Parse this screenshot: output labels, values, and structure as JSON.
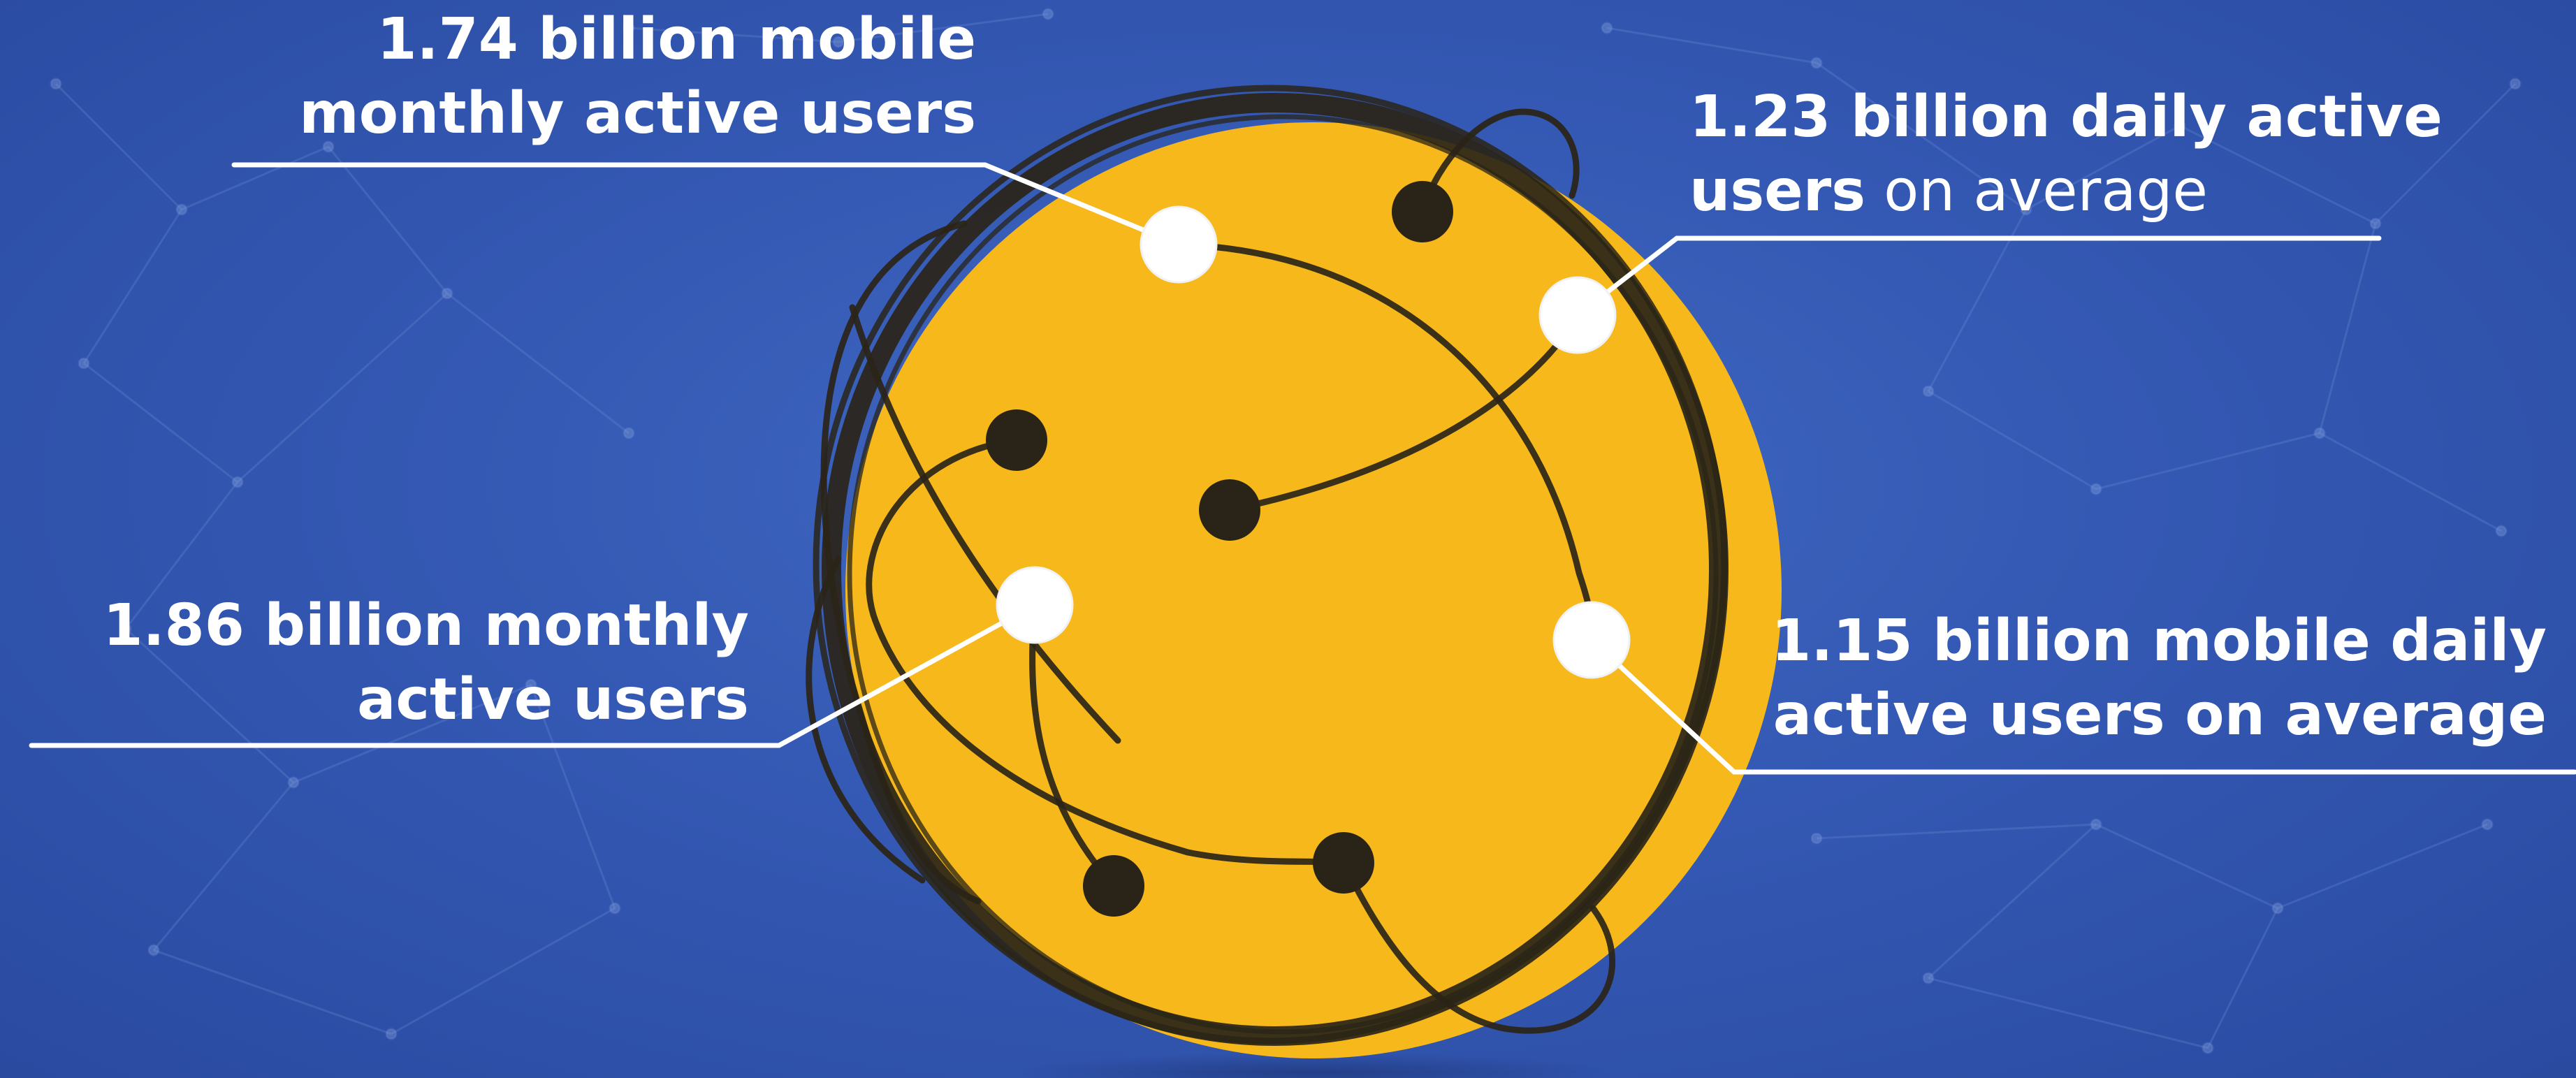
{
  "colors": {
    "background": "#3459b4",
    "globe_fill": "#f6b81a",
    "globe_stroke": "#2a2418",
    "callout_text": "#ffffff",
    "leader_line": "#ffffff"
  },
  "callouts": {
    "top_left": {
      "line1": "1.74 billion mobile",
      "line2": "monthly active users"
    },
    "top_right": {
      "line1": "1.23 billion daily active",
      "line2_bold": "users",
      "line2_normal": " on average"
    },
    "left": {
      "line1": "1.86 billion monthly",
      "line2": "active users"
    },
    "right": {
      "line1": "1.15 billion mobile daily",
      "line2": "active users on average"
    }
  }
}
